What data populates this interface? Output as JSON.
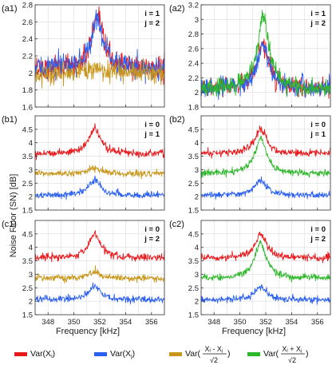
{
  "x_axis": {
    "label": "Frequency [kHz]",
    "ticks": [
      348,
      350,
      352,
      354,
      356
    ],
    "xlim": [
      347.0,
      357.0
    ]
  },
  "y_axis_label": "Noise Floor (SN) [dB]",
  "colors": {
    "red": "#e8191c",
    "blue": "#2a5ff0",
    "gold": "#c8961a",
    "green": "#2db82a",
    "grid": "#dcdcdc"
  },
  "legend": {
    "placement": "bottom",
    "items": [
      {
        "color_key": "red",
        "label": "Var(X_i)"
      },
      {
        "color_key": "blue",
        "label": "Var(X_j)"
      },
      {
        "color_key": "gold",
        "label": "Var((X_i - X_j)/√2)"
      },
      {
        "color_key": "green",
        "label": "Var((X_i + X_j)/√2)"
      }
    ]
  },
  "chart_data": [
    {
      "panel": "(a1)",
      "type": "line",
      "ylim": [
        1.6,
        2.8
      ],
      "yticks": [
        1.6,
        1.8,
        2,
        2.2,
        2.4,
        2.6,
        2.8
      ],
      "annotations": [
        "i = 1",
        "j = 2"
      ],
      "series": [
        {
          "color_key": "red",
          "baseline": 2.05,
          "peak_height": 0.58,
          "noise": 0.07,
          "center": 351.8
        },
        {
          "color_key": "blue",
          "baseline": 2.05,
          "peak_height": 0.6,
          "noise": 0.07,
          "center": 351.8
        },
        {
          "color_key": "gold",
          "baseline": 2.0,
          "peak_height": 0.05,
          "noise": 0.06,
          "center": 351.8
        }
      ]
    },
    {
      "panel": "(a2)",
      "type": "line",
      "ylim": [
        1.8,
        3.2
      ],
      "yticks": [
        1.8,
        2,
        2.2,
        2.4,
        2.6,
        2.8,
        3,
        3.2
      ],
      "annotations": [
        "i = 1",
        "j = 2"
      ],
      "series": [
        {
          "color_key": "red",
          "baseline": 2.05,
          "peak_height": 0.6,
          "noise": 0.06,
          "center": 351.8
        },
        {
          "color_key": "blue",
          "baseline": 2.05,
          "peak_height": 0.6,
          "noise": 0.06,
          "center": 351.8
        },
        {
          "color_key": "green",
          "baseline": 2.05,
          "peak_height": 0.98,
          "noise": 0.06,
          "center": 351.8
        }
      ]
    },
    {
      "panel": "(b1)",
      "type": "line",
      "ylim": [
        1.5,
        5.0
      ],
      "yticks": [
        1.5,
        2,
        2.5,
        3,
        3.5,
        4,
        4.5
      ],
      "annotations": [
        "i = 0",
        "j = 1"
      ],
      "series": [
        {
          "color_key": "red",
          "baseline": 3.6,
          "peak_height": 0.9,
          "noise": 0.07,
          "center": 351.6
        },
        {
          "color_key": "gold",
          "baseline": 2.85,
          "peak_height": 0.22,
          "noise": 0.06,
          "center": 351.6
        },
        {
          "color_key": "blue",
          "baseline": 2.05,
          "peak_height": 0.55,
          "noise": 0.06,
          "center": 351.6
        }
      ]
    },
    {
      "panel": "(b2)",
      "type": "line",
      "ylim": [
        1.5,
        5.0
      ],
      "yticks": [
        1.5,
        2,
        2.5,
        3,
        3.5,
        4,
        4.5
      ],
      "annotations": [
        "i = 0",
        "j = 1"
      ],
      "series": [
        {
          "color_key": "red",
          "baseline": 3.6,
          "peak_height": 0.9,
          "noise": 0.07,
          "center": 351.6
        },
        {
          "color_key": "green",
          "baseline": 2.85,
          "peak_height": 1.3,
          "noise": 0.06,
          "center": 351.6
        },
        {
          "color_key": "blue",
          "baseline": 2.05,
          "peak_height": 0.55,
          "noise": 0.06,
          "center": 351.6
        }
      ]
    },
    {
      "panel": "(c1)",
      "type": "line",
      "ylim": [
        1.5,
        5.0
      ],
      "yticks": [
        1.5,
        2,
        2.5,
        3,
        3.5,
        4,
        4.5
      ],
      "annotations": [
        "i = 0",
        "j = 2"
      ],
      "series": [
        {
          "color_key": "red",
          "baseline": 3.6,
          "peak_height": 0.9,
          "noise": 0.07,
          "center": 351.6
        },
        {
          "color_key": "gold",
          "baseline": 2.85,
          "peak_height": 0.25,
          "noise": 0.06,
          "center": 351.6
        },
        {
          "color_key": "blue",
          "baseline": 2.05,
          "peak_height": 0.5,
          "noise": 0.06,
          "center": 351.6
        }
      ]
    },
    {
      "panel": "(c2)",
      "type": "line",
      "ylim": [
        1.5,
        5.0
      ],
      "yticks": [
        1.5,
        2,
        2.5,
        3,
        3.5,
        4,
        4.5
      ],
      "annotations": [
        "i = 0",
        "j = 2"
      ],
      "series": [
        {
          "color_key": "red",
          "baseline": 3.6,
          "peak_height": 0.9,
          "noise": 0.07,
          "center": 351.6
        },
        {
          "color_key": "green",
          "baseline": 2.85,
          "peak_height": 1.3,
          "noise": 0.06,
          "center": 351.6
        },
        {
          "color_key": "blue",
          "baseline": 2.05,
          "peak_height": 0.5,
          "noise": 0.06,
          "center": 351.6
        }
      ]
    }
  ]
}
